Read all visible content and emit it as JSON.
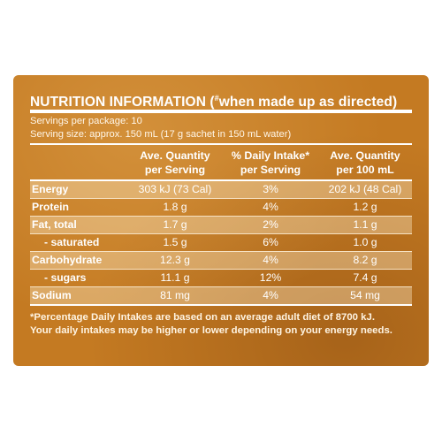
{
  "panel": {
    "title": "NUTRITION INFORMATION (",
    "title_mark": "#",
    "title_suffix": "when made up as directed)",
    "servings": "Servings per package: 10",
    "serving_size": "Serving size: approx. 150 mL (17 g sachet in 150 mL water)"
  },
  "headers": {
    "per_serving_line1": "Ave. Quantity",
    "per_serving_line2": "per Serving",
    "daily_line1": "% Daily Intake*",
    "daily_line2": "per Serving",
    "per_100_line1": "Ave. Quantity",
    "per_100_line2": "per 100 mL"
  },
  "rows": [
    {
      "name": "Energy",
      "per_serving": "303 kJ (73 Cal)",
      "daily": "3%",
      "per_100": "202 kJ (48 Cal)"
    },
    {
      "name": "Protein",
      "per_serving": "1.8 g",
      "daily": "4%",
      "per_100": "1.2 g"
    },
    {
      "name": "Fat, total",
      "per_serving": "1.7 g",
      "daily": "2%",
      "per_100": "1.1 g"
    },
    {
      "name": "- saturated",
      "per_serving": "1.5 g",
      "daily": "6%",
      "per_100": "1.0 g"
    },
    {
      "name": "Carbohydrate",
      "per_serving": "12.3 g",
      "daily": "4%",
      "per_100": "8.2 g"
    },
    {
      "name": "- sugars",
      "per_serving": "11.1 g",
      "daily": "12%",
      "per_100": "7.4 g"
    },
    {
      "name": "Sodium",
      "per_serving": "81 mg",
      "daily": "4%",
      "per_100": "54 mg"
    }
  ],
  "footnote": {
    "line1": "*Percentage Daily Intakes are based on an average adult diet of 8700 kJ.",
    "line2": "Your daily intakes may be higher or lower depending on your energy needs."
  },
  "colors": {
    "panel": "#c47a22",
    "highlight_row": "#e3b67a",
    "text": "#ffffff"
  }
}
